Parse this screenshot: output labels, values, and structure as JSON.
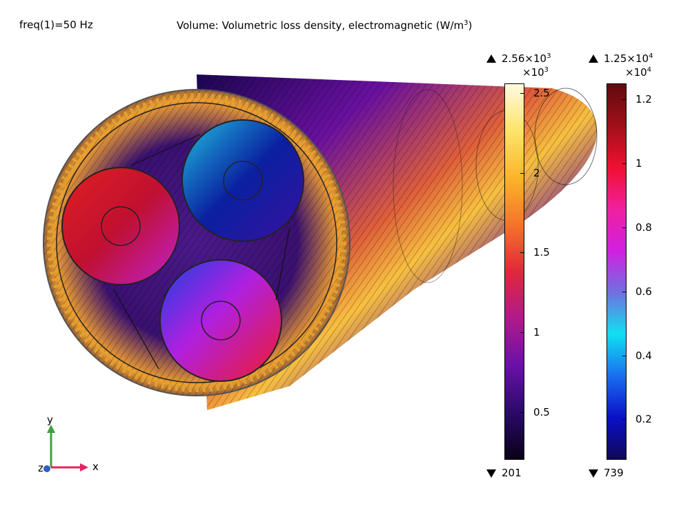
{
  "plot": {
    "freq_label": "freq(1)=50 Hz",
    "title_text": "Volume: Volumetric loss density, electromagnetic (W/m",
    "title_exp": "3",
    "title_close": ")"
  },
  "colorbar_left": {
    "max_mantissa": "2.56×10",
    "max_exp": "3",
    "scale_prefix": "×10",
    "scale_exp": "3",
    "min_label": "201",
    "ticks": [
      {
        "label": "2.5",
        "value": 2.5
      },
      {
        "label": "2",
        "value": 2.0
      },
      {
        "label": "1.5",
        "value": 1.5
      },
      {
        "label": "1",
        "value": 1.0
      },
      {
        "label": "0.5",
        "value": 0.5
      }
    ],
    "range": [
      0.201,
      2.56
    ],
    "colormap": "thermal",
    "colors": [
      "#0a0018",
      "#2a0a6a",
      "#6a10a8",
      "#b01a8a",
      "#e0283a",
      "#f4742a",
      "#fcb42a",
      "#fde46a",
      "#fff9e0"
    ]
  },
  "colorbar_right": {
    "max_mantissa": "1.25×10",
    "max_exp": "4",
    "scale_prefix": "×10",
    "scale_exp": "4",
    "min_label": "739",
    "ticks": [
      {
        "label": "1.2",
        "value": 1.2
      },
      {
        "label": "1",
        "value": 1.0
      },
      {
        "label": "0.8",
        "value": 0.8
      },
      {
        "label": "0.6",
        "value": 0.6
      },
      {
        "label": "0.4",
        "value": 0.4
      },
      {
        "label": "0.2",
        "value": 0.2
      }
    ],
    "range": [
      0.0739,
      1.25
    ],
    "colormap": "rainbow",
    "colors": [
      "#10085a",
      "#0a10c8",
      "#1a6ef0",
      "#10e0f0",
      "#7070e0",
      "#d020e0",
      "#f020a0",
      "#f01030",
      "#a01018",
      "#600a10"
    ]
  },
  "axes_triad": {
    "x_label": "x",
    "y_label": "y",
    "z_label": "z",
    "x_color": "#e0245e",
    "y_color": "#40a040",
    "z_color": "#3060c0"
  }
}
